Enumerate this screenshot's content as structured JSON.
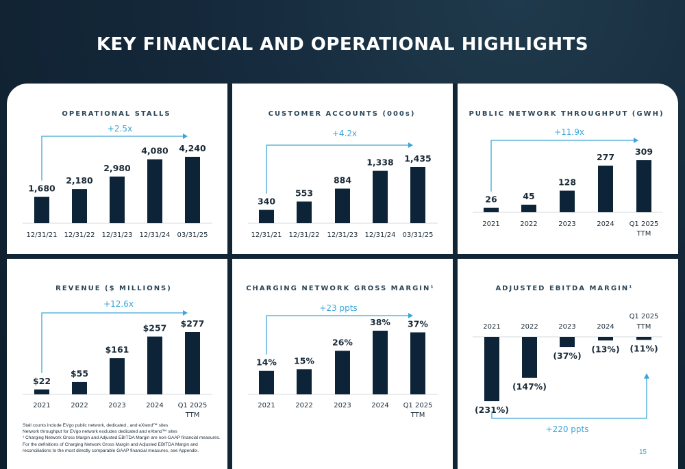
{
  "page_title": "KEY FINANCIAL AND OPERATIONAL HIGHLIGHTS",
  "page_number": "15",
  "colors": {
    "bar": "#0d2438",
    "accent": "#3aa6d8",
    "text": "#1b2b38",
    "title": "#2a4558"
  },
  "footnotes": [
    "Stall counts include EVgo public network, dedicated , and eXtend™ sites",
    "Network throughput for EVgo network excludes dedicated and eXtend™ sites",
    "¹ Charging Network Gross Margin and Adjusted EBITDA Margin are non-GAAP financial measures. For the definitions of Charging Network Gross Margin and Adjusted EBITDA Margin and reconciliations to the most directly comparable GAAP financial measures, see Appendix."
  ],
  "chart_data": [
    {
      "type": "bar",
      "title": "OPERATIONAL STALLS",
      "categories": [
        "12/31/21",
        "12/31/22",
        "12/31/23",
        "12/31/24",
        "03/31/25"
      ],
      "values": [
        1680,
        2180,
        2980,
        4080,
        4240
      ],
      "data_labels": [
        "1,680",
        "2,180",
        "2,980",
        "4,080",
        "4,240"
      ],
      "annotation": "+2.5x",
      "ylim": [
        0,
        4500
      ]
    },
    {
      "type": "bar",
      "title": "CUSTOMER ACCOUNTS (000s)",
      "categories": [
        "12/31/21",
        "12/31/22",
        "12/31/23",
        "12/31/24",
        "03/31/25"
      ],
      "values": [
        340,
        553,
        884,
        1338,
        1435
      ],
      "data_labels": [
        "340",
        "553",
        "884",
        "1,338",
        "1,435"
      ],
      "annotation": "+4.2x",
      "ylim": [
        0,
        1550
      ]
    },
    {
      "type": "bar",
      "title": "PUBLIC NETWORK THROUGHPUT (GWH)",
      "categories": [
        [
          "2021"
        ],
        [
          "2022"
        ],
        [
          "2023"
        ],
        [
          "2024"
        ],
        [
          "Q1 2025",
          "TTM"
        ]
      ],
      "values": [
        26,
        45,
        128,
        277,
        309
      ],
      "data_labels": [
        "26",
        "45",
        "128",
        "277",
        "309"
      ],
      "annotation": "+11.9x",
      "ylim": [
        0,
        340
      ]
    },
    {
      "type": "bar",
      "title": "REVENUE ($ MILLIONS)",
      "categories": [
        [
          "2021"
        ],
        [
          "2022"
        ],
        [
          "2023"
        ],
        [
          "2024"
        ],
        [
          "Q1 2025",
          "TTM"
        ]
      ],
      "values": [
        22,
        55,
        161,
        257,
        277
      ],
      "data_labels": [
        "$22",
        "$55",
        "$161",
        "$257",
        "$277"
      ],
      "annotation": "+12.6x",
      "ylim": [
        0,
        300
      ]
    },
    {
      "type": "bar",
      "title": "CHARGING NETWORK GROSS MARGIN¹",
      "categories": [
        [
          "2021"
        ],
        [
          "2022"
        ],
        [
          "2023"
        ],
        [
          "2024"
        ],
        [
          "Q1 2025",
          "TTM"
        ]
      ],
      "values": [
        14,
        15,
        26,
        38,
        37
      ],
      "data_labels": [
        "14%",
        "15%",
        "26%",
        "38%",
        "37%"
      ],
      "annotation": "+23 ppts",
      "ylim": [
        0,
        42
      ]
    },
    {
      "type": "bar",
      "title": "ADJUSTED EBITDA MARGIN¹",
      "categories": [
        [
          "2021"
        ],
        [
          "2022"
        ],
        [
          "2023"
        ],
        [
          "2024"
        ],
        [
          "Q1 2025",
          "TTM"
        ]
      ],
      "values": [
        -231,
        -147,
        -37,
        -13,
        -11
      ],
      "data_labels": [
        "(231%)",
        "(147%)",
        "(37%)",
        "(13%)",
        "(11%)"
      ],
      "annotation": "+220 ppts",
      "ylim": [
        -240,
        0
      ]
    }
  ]
}
